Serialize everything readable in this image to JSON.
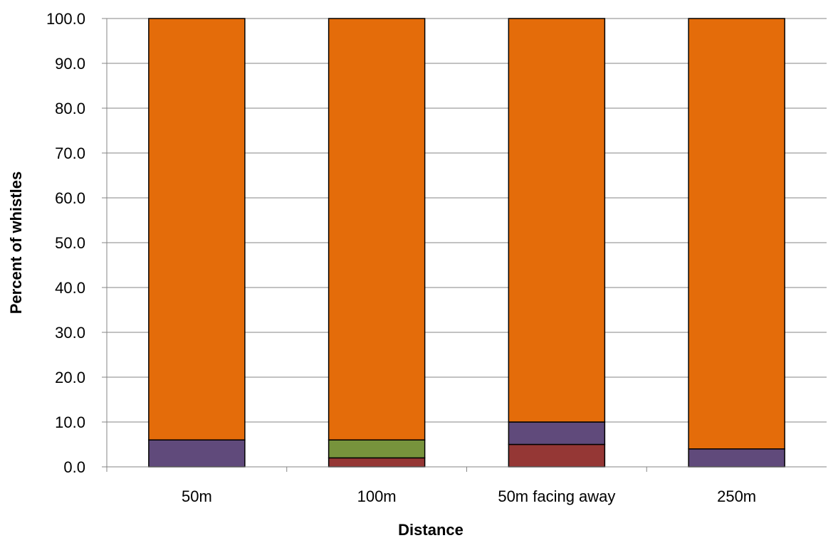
{
  "chart_data": {
    "type": "bar",
    "stacked": true,
    "title": "",
    "xlabel": "Distance",
    "ylabel": "Percent of whistles",
    "ylim": [
      0,
      100
    ],
    "y_ticks": [
      "0.0",
      "10.0",
      "20.0",
      "30.0",
      "40.0",
      "50.0",
      "60.0",
      "70.0",
      "80.0",
      "90.0",
      "100.0"
    ],
    "grid": true,
    "legend": "none",
    "categories": [
      "50m",
      "100m",
      "50m facing away",
      "250m"
    ],
    "series": [
      {
        "color": "#953735",
        "values": [
          0,
          2,
          5,
          0
        ]
      },
      {
        "color": "#77933C",
        "values": [
          0,
          4,
          0,
          0
        ]
      },
      {
        "color": "#604A7B",
        "values": [
          6,
          0,
          5,
          4
        ]
      },
      {
        "color": "#E46C0A",
        "values": [
          94,
          94,
          90,
          96
        ]
      }
    ]
  }
}
